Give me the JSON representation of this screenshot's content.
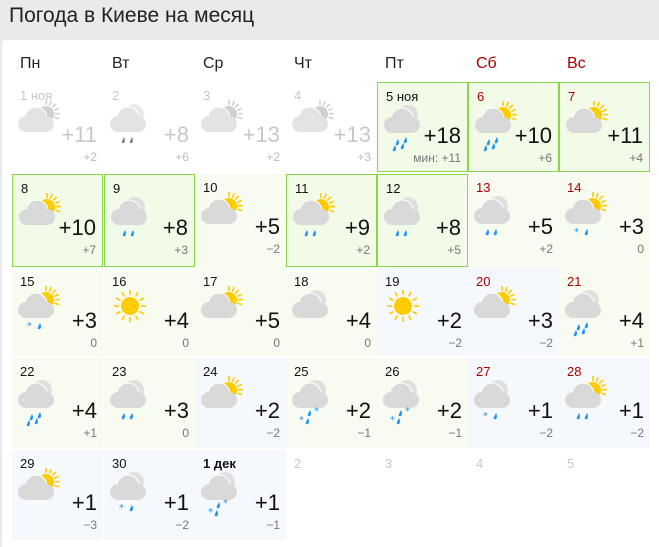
{
  "title": "Погода в Киеве на месяц",
  "weekdays": [
    {
      "label": "Пн",
      "weekend": false
    },
    {
      "label": "Вт",
      "weekend": false
    },
    {
      "label": "Ср",
      "weekend": false
    },
    {
      "label": "Чт",
      "weekend": false
    },
    {
      "label": "Пт",
      "weekend": false
    },
    {
      "label": "Сб",
      "weekend": true
    },
    {
      "label": "Вс",
      "weekend": true
    }
  ],
  "colors": {
    "sun": "#ffcc00",
    "cloud": "#d9d9d9",
    "precip": "#2196f3",
    "weekend": "#aa0000",
    "highlight_border": "#8ad84a"
  },
  "days": [
    {
      "date": "1 ноя",
      "state": "past",
      "sky": "partly-cloudy",
      "precip": "none",
      "max": "+11",
      "min": "+2"
    },
    {
      "date": "2",
      "state": "past",
      "sky": "cloudy",
      "precip": "rain-light",
      "max": "+8",
      "min": "+6"
    },
    {
      "date": "3",
      "state": "past",
      "sky": "partly-cloudy",
      "precip": "none",
      "max": "+13",
      "min": "+2"
    },
    {
      "date": "4",
      "state": "past",
      "sky": "partly-cloudy",
      "precip": "none",
      "max": "+13",
      "min": "+3"
    },
    {
      "date": "5 ноя",
      "state": "current",
      "sky": "cloudy",
      "precip": "rain",
      "max": "+18",
      "min": "мин: +11",
      "bg": "warm"
    },
    {
      "date": "6",
      "state": "current",
      "weekend": true,
      "sky": "partly-cloudy",
      "precip": "rain",
      "max": "+10",
      "min": "+6",
      "bg": "warm"
    },
    {
      "date": "7",
      "state": "current",
      "weekend": true,
      "sky": "partly-cloudy",
      "precip": "none",
      "max": "+11",
      "min": "+4",
      "bg": "warm"
    },
    {
      "date": "8",
      "state": "current",
      "sky": "partly-cloudy",
      "precip": "none",
      "max": "+10",
      "min": "+7",
      "bg": "warm"
    },
    {
      "date": "9",
      "state": "current",
      "sky": "cloudy",
      "precip": "rain-light",
      "max": "+8",
      "min": "+3",
      "bg": "warm"
    },
    {
      "date": "10",
      "state": "normal",
      "sky": "partly-cloudy",
      "precip": "none",
      "max": "+5",
      "min": "−2",
      "bg": "warm"
    },
    {
      "date": "11",
      "state": "current",
      "sky": "partly-cloudy",
      "precip": "rain-light",
      "max": "+9",
      "min": "+2",
      "bg": "warm"
    },
    {
      "date": "12",
      "state": "current",
      "sky": "cloudy",
      "precip": "rain-light",
      "max": "+8",
      "min": "+5",
      "bg": "warm"
    },
    {
      "date": "13",
      "state": "normal",
      "weekend": true,
      "sky": "cloudy",
      "precip": "rain-light",
      "max": "+5",
      "min": "+2",
      "bg": "warm"
    },
    {
      "date": "14",
      "state": "normal",
      "weekend": true,
      "sky": "partly-cloudy",
      "precip": "sleet-light",
      "max": "+3",
      "min": "0",
      "bg": "warm"
    },
    {
      "date": "15",
      "state": "normal",
      "sky": "partly-cloudy",
      "precip": "sleet-light",
      "max": "+3",
      "min": "0",
      "bg": "warm"
    },
    {
      "date": "16",
      "state": "normal",
      "sky": "sunny",
      "precip": "none",
      "max": "+4",
      "min": "0",
      "bg": "warm"
    },
    {
      "date": "17",
      "state": "normal",
      "sky": "partly-cloudy",
      "precip": "none",
      "max": "+5",
      "min": "0",
      "bg": "warm"
    },
    {
      "date": "18",
      "state": "normal",
      "sky": "cloudy",
      "precip": "none",
      "max": "+4",
      "min": "0",
      "bg": "warm"
    },
    {
      "date": "19",
      "state": "normal",
      "sky": "sunny",
      "precip": "none",
      "max": "+2",
      "min": "−2",
      "bg": "cold"
    },
    {
      "date": "20",
      "state": "normal",
      "weekend": true,
      "sky": "partly-cloudy",
      "precip": "none",
      "max": "+3",
      "min": "−2",
      "bg": "cold"
    },
    {
      "date": "21",
      "state": "normal",
      "weekend": true,
      "sky": "cloudy",
      "precip": "rain",
      "max": "+4",
      "min": "+1",
      "bg": "warm"
    },
    {
      "date": "22",
      "state": "normal",
      "sky": "cloudy",
      "precip": "rain",
      "max": "+4",
      "min": "+1",
      "bg": "warm"
    },
    {
      "date": "23",
      "state": "normal",
      "sky": "cloudy",
      "precip": "rain-light",
      "max": "+3",
      "min": "0",
      "bg": "warm"
    },
    {
      "date": "24",
      "state": "normal",
      "sky": "partly-cloudy",
      "precip": "none",
      "max": "+2",
      "min": "−2",
      "bg": "cold"
    },
    {
      "date": "25",
      "state": "normal",
      "sky": "cloudy",
      "precip": "sleet",
      "max": "+2",
      "min": "−1",
      "bg": "warm"
    },
    {
      "date": "26",
      "state": "normal",
      "sky": "cloudy",
      "precip": "sleet",
      "max": "+2",
      "min": "−1",
      "bg": "warm"
    },
    {
      "date": "27",
      "state": "normal",
      "weekend": true,
      "sky": "cloudy",
      "precip": "sleet-light",
      "max": "+1",
      "min": "−2",
      "bg": "cold"
    },
    {
      "date": "28",
      "state": "normal",
      "weekend": true,
      "sky": "partly-cloudy",
      "precip": "rain-light",
      "max": "+1",
      "min": "−2",
      "bg": "cold"
    },
    {
      "date": "29",
      "state": "normal",
      "sky": "partly-cloudy",
      "precip": "none",
      "max": "+1",
      "min": "−3",
      "bg": "cold"
    },
    {
      "date": "30",
      "state": "normal",
      "sky": "cloudy",
      "precip": "sleet-light",
      "max": "+1",
      "min": "−2",
      "bg": "cold"
    },
    {
      "date": "1 дек",
      "state": "normal",
      "bold": true,
      "sky": "cloudy",
      "precip": "sleet",
      "max": "+1",
      "min": "−1",
      "bg": "cold"
    },
    {
      "date": "2",
      "state": "future"
    },
    {
      "date": "3",
      "state": "future"
    },
    {
      "date": "4",
      "state": "future"
    },
    {
      "date": "5",
      "state": "future"
    }
  ]
}
